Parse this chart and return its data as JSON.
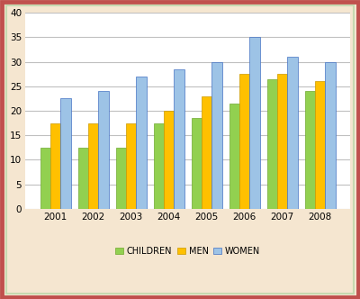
{
  "years": [
    "2001",
    "2002",
    "2003",
    "2004",
    "2005",
    "2006",
    "2007",
    "2008"
  ],
  "children": [
    12.5,
    12.5,
    12.5,
    17.5,
    18.5,
    21.5,
    26.5,
    24.0
  ],
  "men": [
    17.5,
    17.5,
    17.5,
    20.0,
    23.0,
    27.5,
    27.5,
    26.0
  ],
  "women": [
    22.5,
    24.0,
    27.0,
    28.5,
    30.0,
    35.0,
    31.0,
    30.0
  ],
  "children_color": "#92d050",
  "men_color": "#ffc000",
  "women_color": "#9dc3e6",
  "children_edge": "#70a830",
  "men_edge": "#cc9a00",
  "women_edge": "#4472c4",
  "legend_labels": [
    "CHILDREN",
    "MEN",
    "WOMEN"
  ],
  "ylim": [
    0,
    40
  ],
  "yticks": [
    0,
    5,
    10,
    15,
    20,
    25,
    30,
    35,
    40
  ],
  "bar_width": 0.27,
  "grid_color": "#c0c0c0",
  "plot_bg": "#ffffff",
  "fig_bg": "#f5e6d0",
  "outer_border_color": "#c0504d",
  "inner_border_color": "#c6d9b0"
}
